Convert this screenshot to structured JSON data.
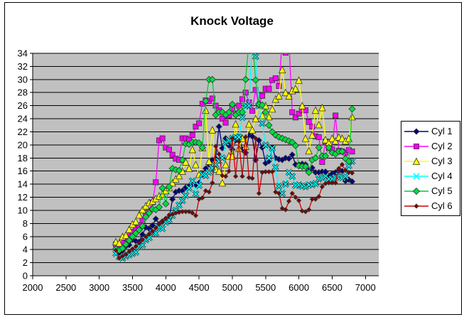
{
  "chart_data": {
    "type": "line",
    "title": "Knock Voltage",
    "xlabel": "",
    "ylabel": "",
    "legend_position": "right",
    "plot_bg_color": "#c0c0c0",
    "gridline_color": "#000000",
    "gridlines": "horizontal",
    "x_axis_range": [
      2000,
      7200
    ],
    "y_axis_range": [
      0,
      34
    ],
    "x_ticks": [
      "2000",
      "2500",
      "3000",
      "3500",
      "4000",
      "4500",
      "5000",
      "5500",
      "6000",
      "6500",
      "7000"
    ],
    "y_ticks": [
      "0",
      "2",
      "4",
      "6",
      "8",
      "10",
      "12",
      "14",
      "16",
      "18",
      "20",
      "22",
      "24",
      "26",
      "28",
      "30",
      "32",
      "34"
    ],
    "clipping_note": "values of 36 represent spikes that run off the top of the plot (clipped at 34)",
    "x": [
      3250,
      3300,
      3350,
      3400,
      3450,
      3500,
      3550,
      3600,
      3650,
      3700,
      3750,
      3800,
      3850,
      3900,
      3950,
      4000,
      4050,
      4100,
      4150,
      4200,
      4250,
      4300,
      4350,
      4400,
      4450,
      4500,
      4550,
      4600,
      4650,
      4700,
      4750,
      4800,
      4850,
      4900,
      4950,
      5000,
      5050,
      5100,
      5150,
      5200,
      5250,
      5300,
      5350,
      5400,
      5450,
      5500,
      5550,
      5600,
      5650,
      5700,
      5750,
      5800,
      5850,
      5900,
      5950,
      6000,
      6050,
      6100,
      6150,
      6200,
      6250,
      6300,
      6350,
      6400,
      6450,
      6500,
      6550,
      6600,
      6650,
      6700,
      6750,
      6800
    ],
    "series": [
      {
        "name": "Cyl 1",
        "line_color": "#000080",
        "marker": "diamond",
        "marker_color": "#000080",
        "marker_size": 4,
        "values": [
          4.0,
          3.5,
          3.8,
          4.5,
          4.7,
          5.5,
          5.3,
          5.2,
          6.3,
          7.4,
          7.2,
          7.7,
          8.7,
          7.9,
          8.3,
          8.5,
          8.7,
          11.7,
          12.8,
          13.0,
          13.0,
          13.5,
          13.7,
          14.0,
          13.9,
          14.2,
          15.5,
          16.4,
          17.0,
          17.7,
          17.9,
          22.8,
          19.5,
          21.0,
          19.9,
          19.3,
          20.7,
          21.3,
          19.3,
          18.8,
          21.5,
          21.3,
          17.7,
          20.7,
          19.6,
          17.2,
          17.5,
          19.6,
          18.0,
          17.8,
          17.7,
          18.0,
          17.9,
          18.5,
          17.0,
          17.0,
          17.1,
          17.0,
          16.1,
          16.5,
          15.8,
          15.8,
          15.9,
          15.9,
          15.3,
          15.6,
          15.8,
          16.1,
          16.0,
          14.5,
          14.7,
          14.4
        ]
      },
      {
        "name": "Cyl 2",
        "line_color": "#ff00ff",
        "marker": "square",
        "marker_color": "#ff00ff",
        "marker_size": 3.6,
        "values": [
          4.8,
          4.7,
          5.2,
          5.8,
          6.5,
          6.7,
          7.3,
          7.7,
          8.5,
          9.3,
          10.0,
          11.2,
          14.3,
          20.7,
          21.0,
          19.6,
          19.3,
          18.5,
          17.9,
          17.7,
          21.0,
          21.0,
          20.8,
          21.5,
          22.8,
          23.3,
          26.3,
          26.8,
          26.7,
          27.1,
          26.0,
          25.3,
          24.0,
          23.4,
          24.5,
          25.5,
          24.8,
          26.0,
          27.0,
          28.0,
          26.5,
          25.2,
          28.4,
          26.0,
          27.5,
          28.6,
          28.6,
          29.9,
          30.2,
          29.0,
          36.0,
          34.1,
          36.0,
          25.0,
          24.2,
          24.8,
          25.3,
          25.3,
          23.5,
          22.8,
          21.3,
          21.2,
          17.4,
          20.5,
          19.5,
          19.3,
          24.5,
          19.1,
          19.0,
          18.8,
          19.2,
          19.0
        ]
      },
      {
        "name": "Cyl 3",
        "line_color": "#ffff00",
        "marker": "triangle",
        "marker_color": "#ffff00",
        "marker_size": 4.6,
        "values": [
          5.2,
          5.0,
          6.0,
          6.2,
          7.1,
          7.9,
          8.3,
          9.3,
          10.1,
          10.7,
          11.2,
          11.4,
          11.8,
          12.2,
          12.5,
          13.0,
          13.5,
          14.2,
          14.8,
          15.3,
          16.0,
          17.4,
          16.4,
          19.3,
          17.0,
          15.5,
          19.6,
          25.3,
          17.5,
          22.3,
          16.3,
          16.0,
          14.2,
          17.0,
          18.3,
          18.3,
          23.2,
          19.5,
          21.0,
          19.8,
          23.2,
          22.3,
          24.0,
          26.5,
          24.5,
          26.0,
          24.3,
          25.5,
          27.0,
          27.5,
          31.5,
          28.0,
          27.5,
          28.3,
          28.6,
          29.9,
          26.0,
          21.0,
          19.1,
          21.5,
          25.3,
          23.1,
          25.7,
          20.8,
          20.4,
          21.0,
          20.6,
          21.2,
          21.0,
          20.6,
          21.0,
          24.3
        ]
      },
      {
        "name": "Cyl 4",
        "line_color": "#00ffff",
        "marker": "x",
        "marker_color": "#00ffff",
        "marker_size": 4,
        "values": [
          3.4,
          2.9,
          2.7,
          3.0,
          3.2,
          3.4,
          3.6,
          4.5,
          4.7,
          5.5,
          5.8,
          6.6,
          6.5,
          7.4,
          7.2,
          8.2,
          8.5,
          9.2,
          10.0,
          10.8,
          11.5,
          12.3,
          13.4,
          14.5,
          12.5,
          13.8,
          15.5,
          15.3,
          15.8,
          16.5,
          17.0,
          17.5,
          18.0,
          20.4,
          20.7,
          21.0,
          21.2,
          21.2,
          24.2,
          26.0,
          26.0,
          36.0,
          33.5,
          26.0,
          23.3,
          20.0,
          18.0,
          19.5,
          16.6,
          13.7,
          12.6,
          14.0,
          15.8,
          15.2,
          13.8,
          13.9,
          13.7,
          13.6,
          13.9,
          13.9,
          14.1,
          14.8,
          15.0,
          15.2,
          14.8,
          14.8,
          15.0,
          15.3,
          15.0,
          15.2,
          16.8,
          17.5
        ]
      },
      {
        "name": "Cyl 5",
        "line_color": "#00cc33",
        "marker": "diamond",
        "marker_color": "#00dd44",
        "marker_size": 4.5,
        "values": [
          4.1,
          3.9,
          4.2,
          4.8,
          5.4,
          6.0,
          6.5,
          7.0,
          7.6,
          9.0,
          9.6,
          10.2,
          10.1,
          10.5,
          13.4,
          11.0,
          13.6,
          16.4,
          16.2,
          16.1,
          17.7,
          20.2,
          20.1,
          20.4,
          20.4,
          20.3,
          19.6,
          26.7,
          30.0,
          30.0,
          24.6,
          25.0,
          25.0,
          24.6,
          25.0,
          26.2,
          24.6,
          25.0,
          25.0,
          30.0,
          36.0,
          36.0,
          29.9,
          26.2,
          26.1,
          25.0,
          23.0,
          22.0,
          21.5,
          21.2,
          21.0,
          20.8,
          20.6,
          20.4,
          19.9,
          16.8,
          16.7,
          16.7,
          15.8,
          17.7,
          18.0,
          19.6,
          18.3,
          18.3,
          19.6,
          18.8,
          18.6,
          19.0,
          19.0,
          17.9,
          17.5,
          25.5
        ]
      },
      {
        "name": "Cyl 6",
        "line_color": "#cc0000",
        "marker": "diamond",
        "marker_color": "#800000",
        "marker_size": 3,
        "values": [
          3.9,
          2.7,
          3.0,
          3.3,
          3.7,
          4.1,
          4.5,
          5.0,
          5.5,
          6.0,
          6.4,
          6.8,
          7.3,
          7.9,
          8.4,
          8.8,
          9.3,
          9.4,
          9.6,
          9.7,
          9.8,
          9.8,
          9.8,
          9.6,
          9.2,
          11.7,
          11.9,
          13.0,
          12.8,
          14.2,
          19.8,
          18.6,
          15.3,
          15.2,
          16.0,
          21.0,
          15.2,
          20.5,
          15.2,
          21.2,
          15.0,
          14.9,
          21.0,
          12.6,
          15.8,
          15.9,
          15.9,
          15.9,
          12.8,
          12.6,
          10.3,
          10.1,
          11.4,
          12.6,
          12.0,
          11.5,
          9.9,
          9.8,
          10.1,
          11.7,
          11.7,
          12.1,
          13.6,
          14.1,
          14.2,
          14.2,
          14.2,
          16.4,
          17.0,
          16.1,
          15.8,
          15.7
        ]
      }
    ]
  }
}
